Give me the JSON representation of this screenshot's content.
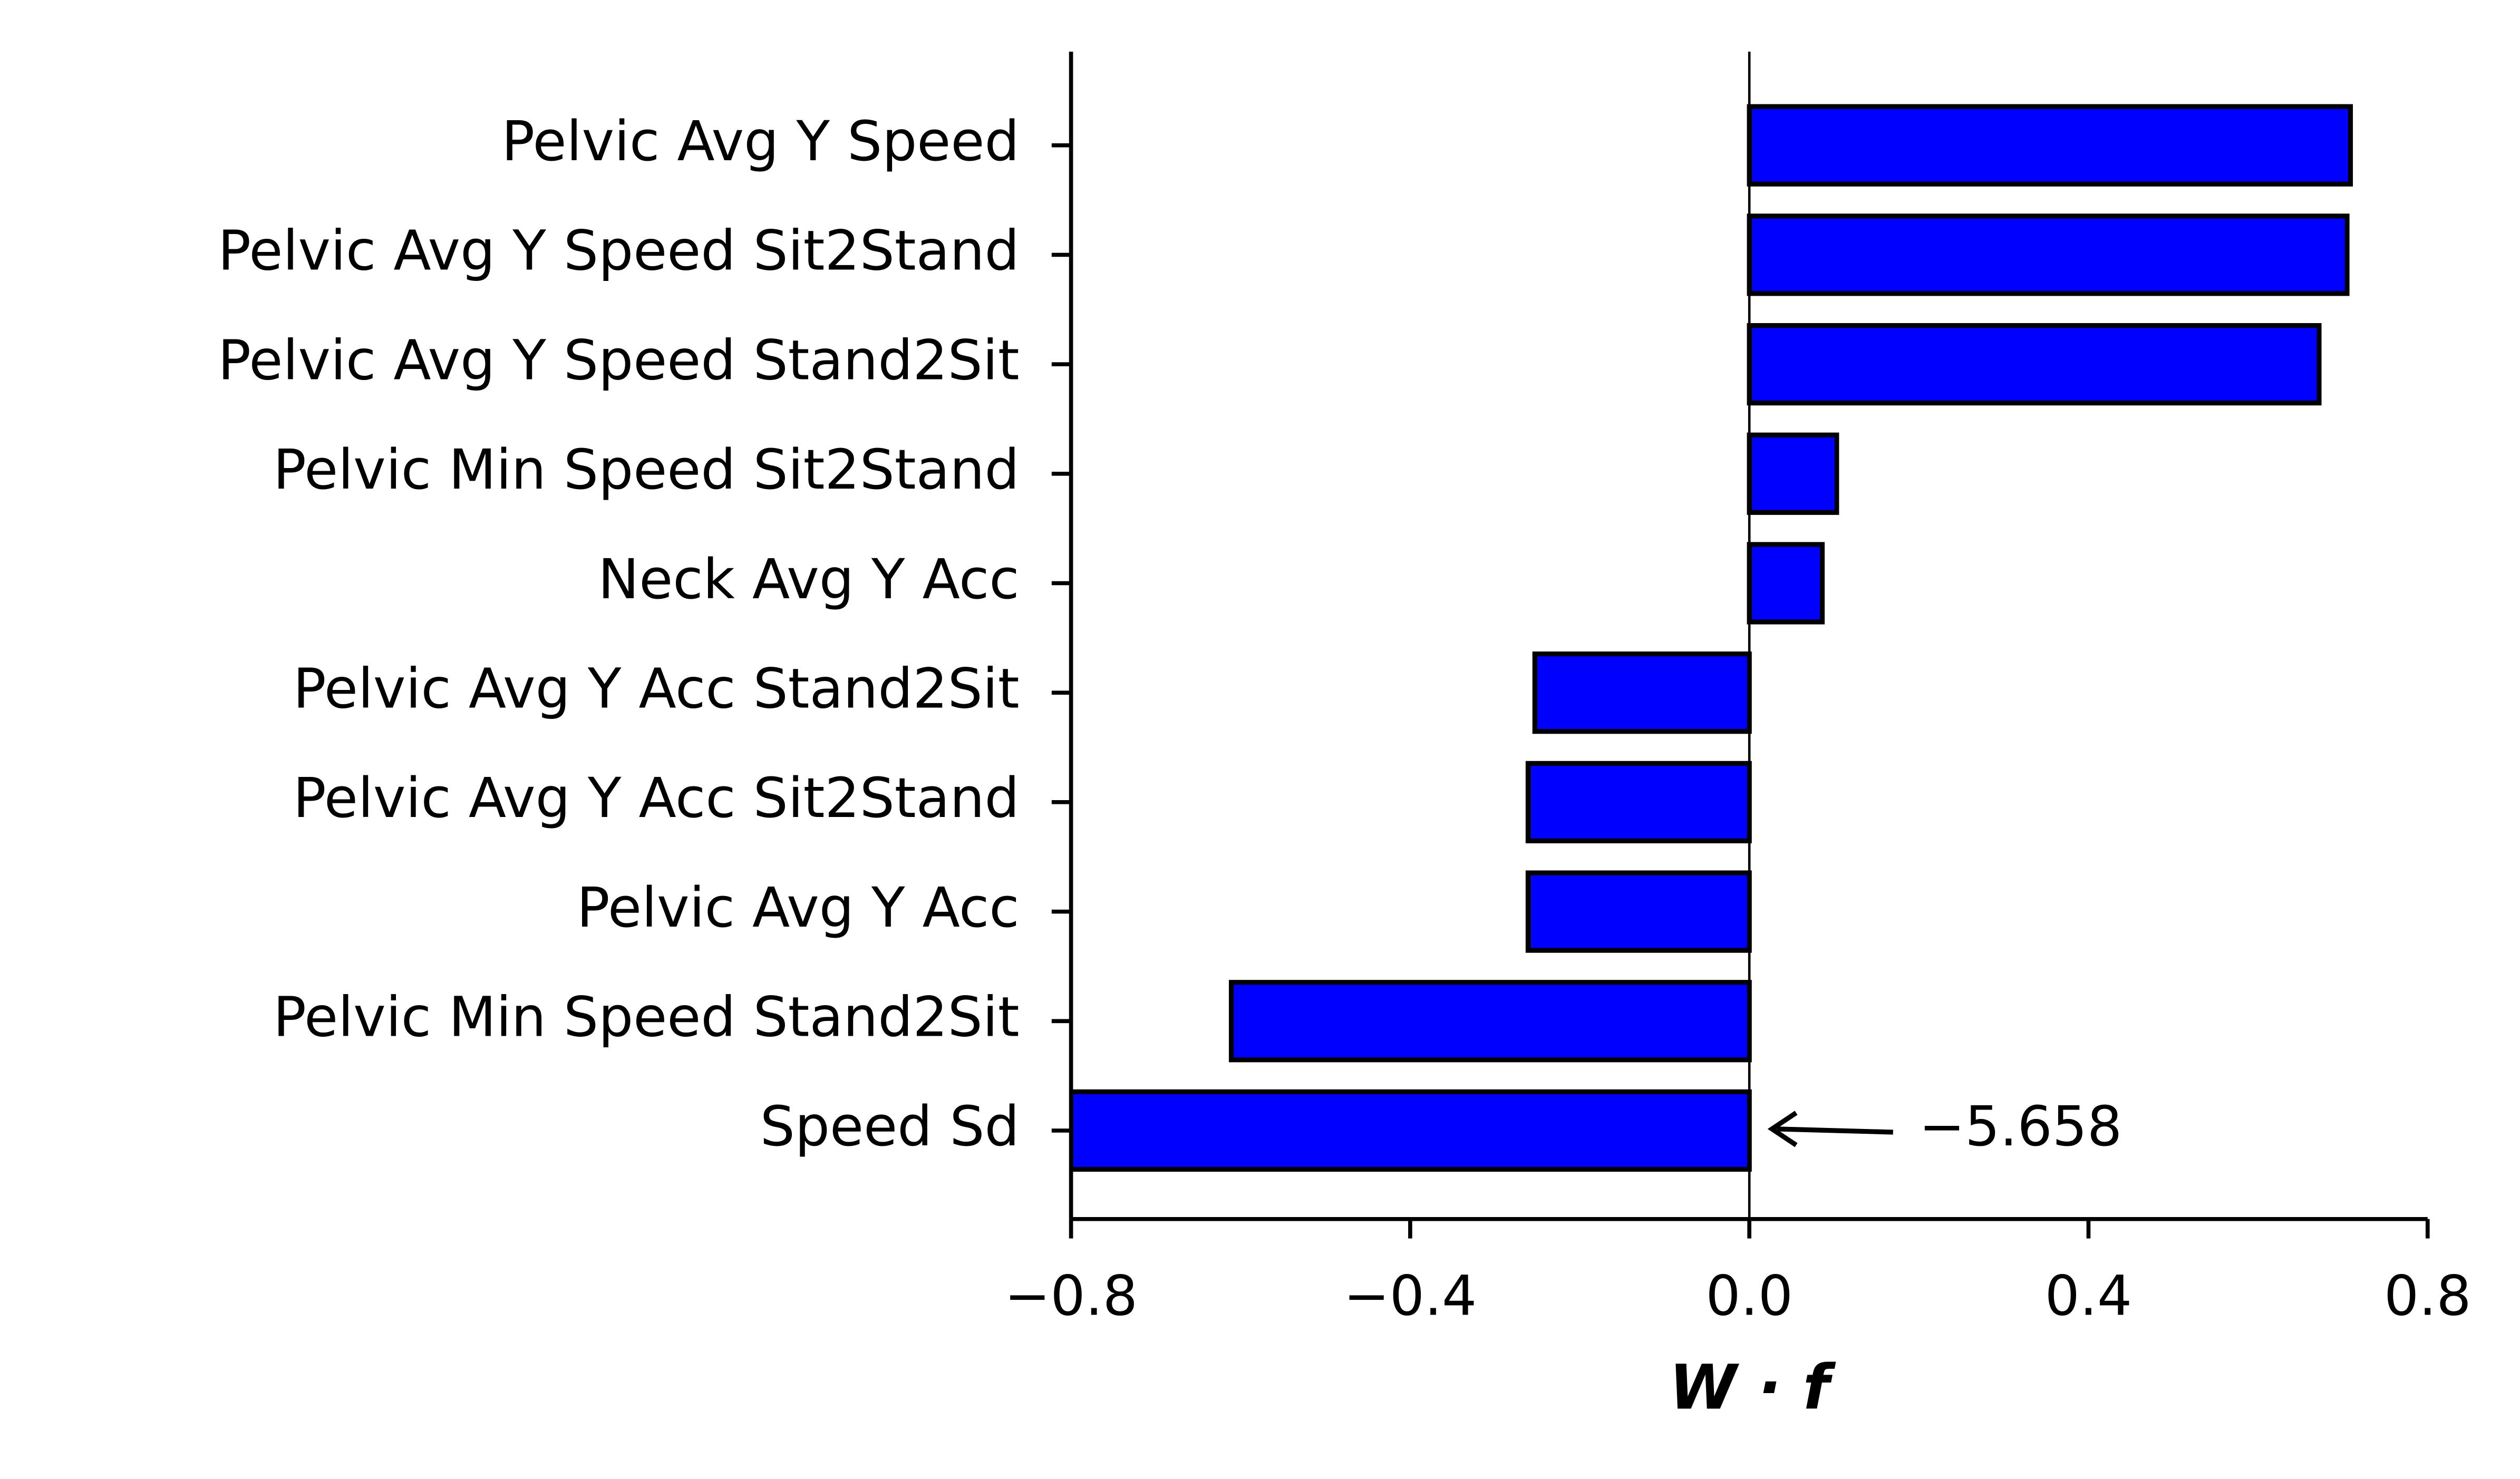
{
  "chart_data": {
    "type": "barh",
    "categories": [
      "Pelvic Avg Y Speed",
      "Pelvic Avg Y Speed Sit2Stand",
      "Pelvic Avg Y Speed Stand2Sit",
      "Pelvic Min Speed Sit2Stand",
      "Neck Avg Y Acc",
      "Pelvic Avg Y Acc Stand2Sit",
      "Pelvic Avg Y Acc Sit2Stand",
      "Pelvic Avg Y Acc",
      "Pelvic Min Speed Stand2Sit",
      "Speed Sd"
    ],
    "values": [
      0.709,
      0.705,
      0.672,
      0.103,
      0.086,
      -0.253,
      -0.261,
      -0.261,
      -0.611,
      -5.658
    ],
    "value_labels": [
      null,
      null,
      null,
      null,
      null,
      null,
      null,
      null,
      null,
      "−5.658"
    ],
    "color": "#0000ff",
    "edgecolor": "#000000",
    "xlabel": "W · f",
    "xlim": [
      -0.8,
      0.8
    ],
    "xticks": [
      {
        "value": -0.8,
        "label": "−0.8"
      },
      {
        "value": -0.4,
        "label": "−0.4"
      },
      {
        "value": 0,
        "label": "0.0"
      },
      0.4,
      0.8
    ]
  }
}
